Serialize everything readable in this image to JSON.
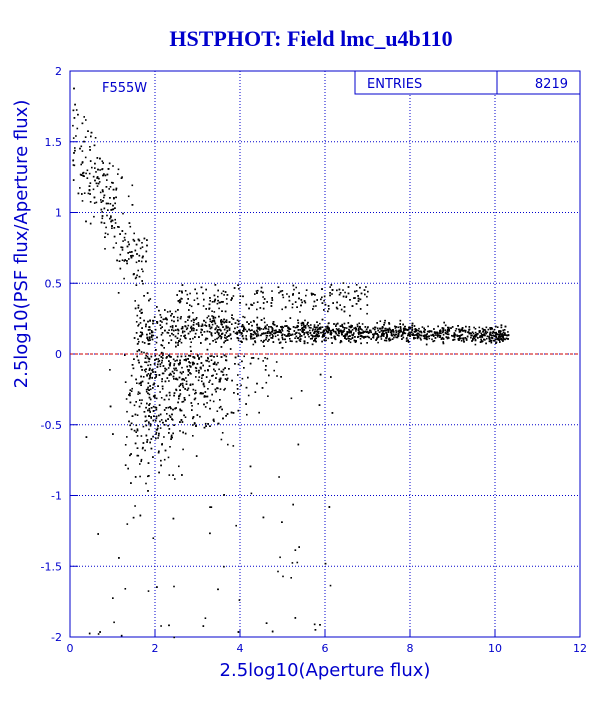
{
  "chart_data": {
    "type": "scatter",
    "title": "HSTPHOT: Field lmc_u4b110",
    "xlabel": "2.5log10(Aperture flux)",
    "ylabel": "2.5log10(PSF flux/Aperture flux)",
    "xlim": [
      0,
      12
    ],
    "ylim": [
      -2,
      2
    ],
    "x_ticks": [
      "0",
      "2",
      "4",
      "6",
      "8",
      "10",
      "12"
    ],
    "y_ticks": [
      "-2",
      "-1.5",
      "-1",
      "-0.5",
      "0",
      "0.5",
      "1",
      "1.5",
      "2"
    ],
    "grid": true,
    "reference_line": {
      "y": 0,
      "color": "#cc0000",
      "style": "dashed"
    },
    "filter_label": "F555W",
    "stats": {
      "label": "ENTRIES",
      "value": "8219"
    },
    "point_color": "#000000",
    "axis_color": "#0000cc",
    "distribution": [
      {
        "name": "core",
        "x_min": 1.5,
        "x_max": 10.3,
        "y_center_at_x3": 0.18,
        "y_center_at_x9": 0.15
      },
      {
        "name": "upper-branch",
        "x_min": 2.5,
        "x_max": 7.0,
        "y_center": 0.4
      },
      {
        "name": "bright-tail",
        "x_min": 0.0,
        "x_max": 1.8,
        "y_range": [
          0.5,
          1.6
        ]
      },
      {
        "name": "lower-spread",
        "x_min": 0.3,
        "x_max": 6.5,
        "y_range": [
          -2.0,
          -0.1
        ]
      }
    ]
  }
}
